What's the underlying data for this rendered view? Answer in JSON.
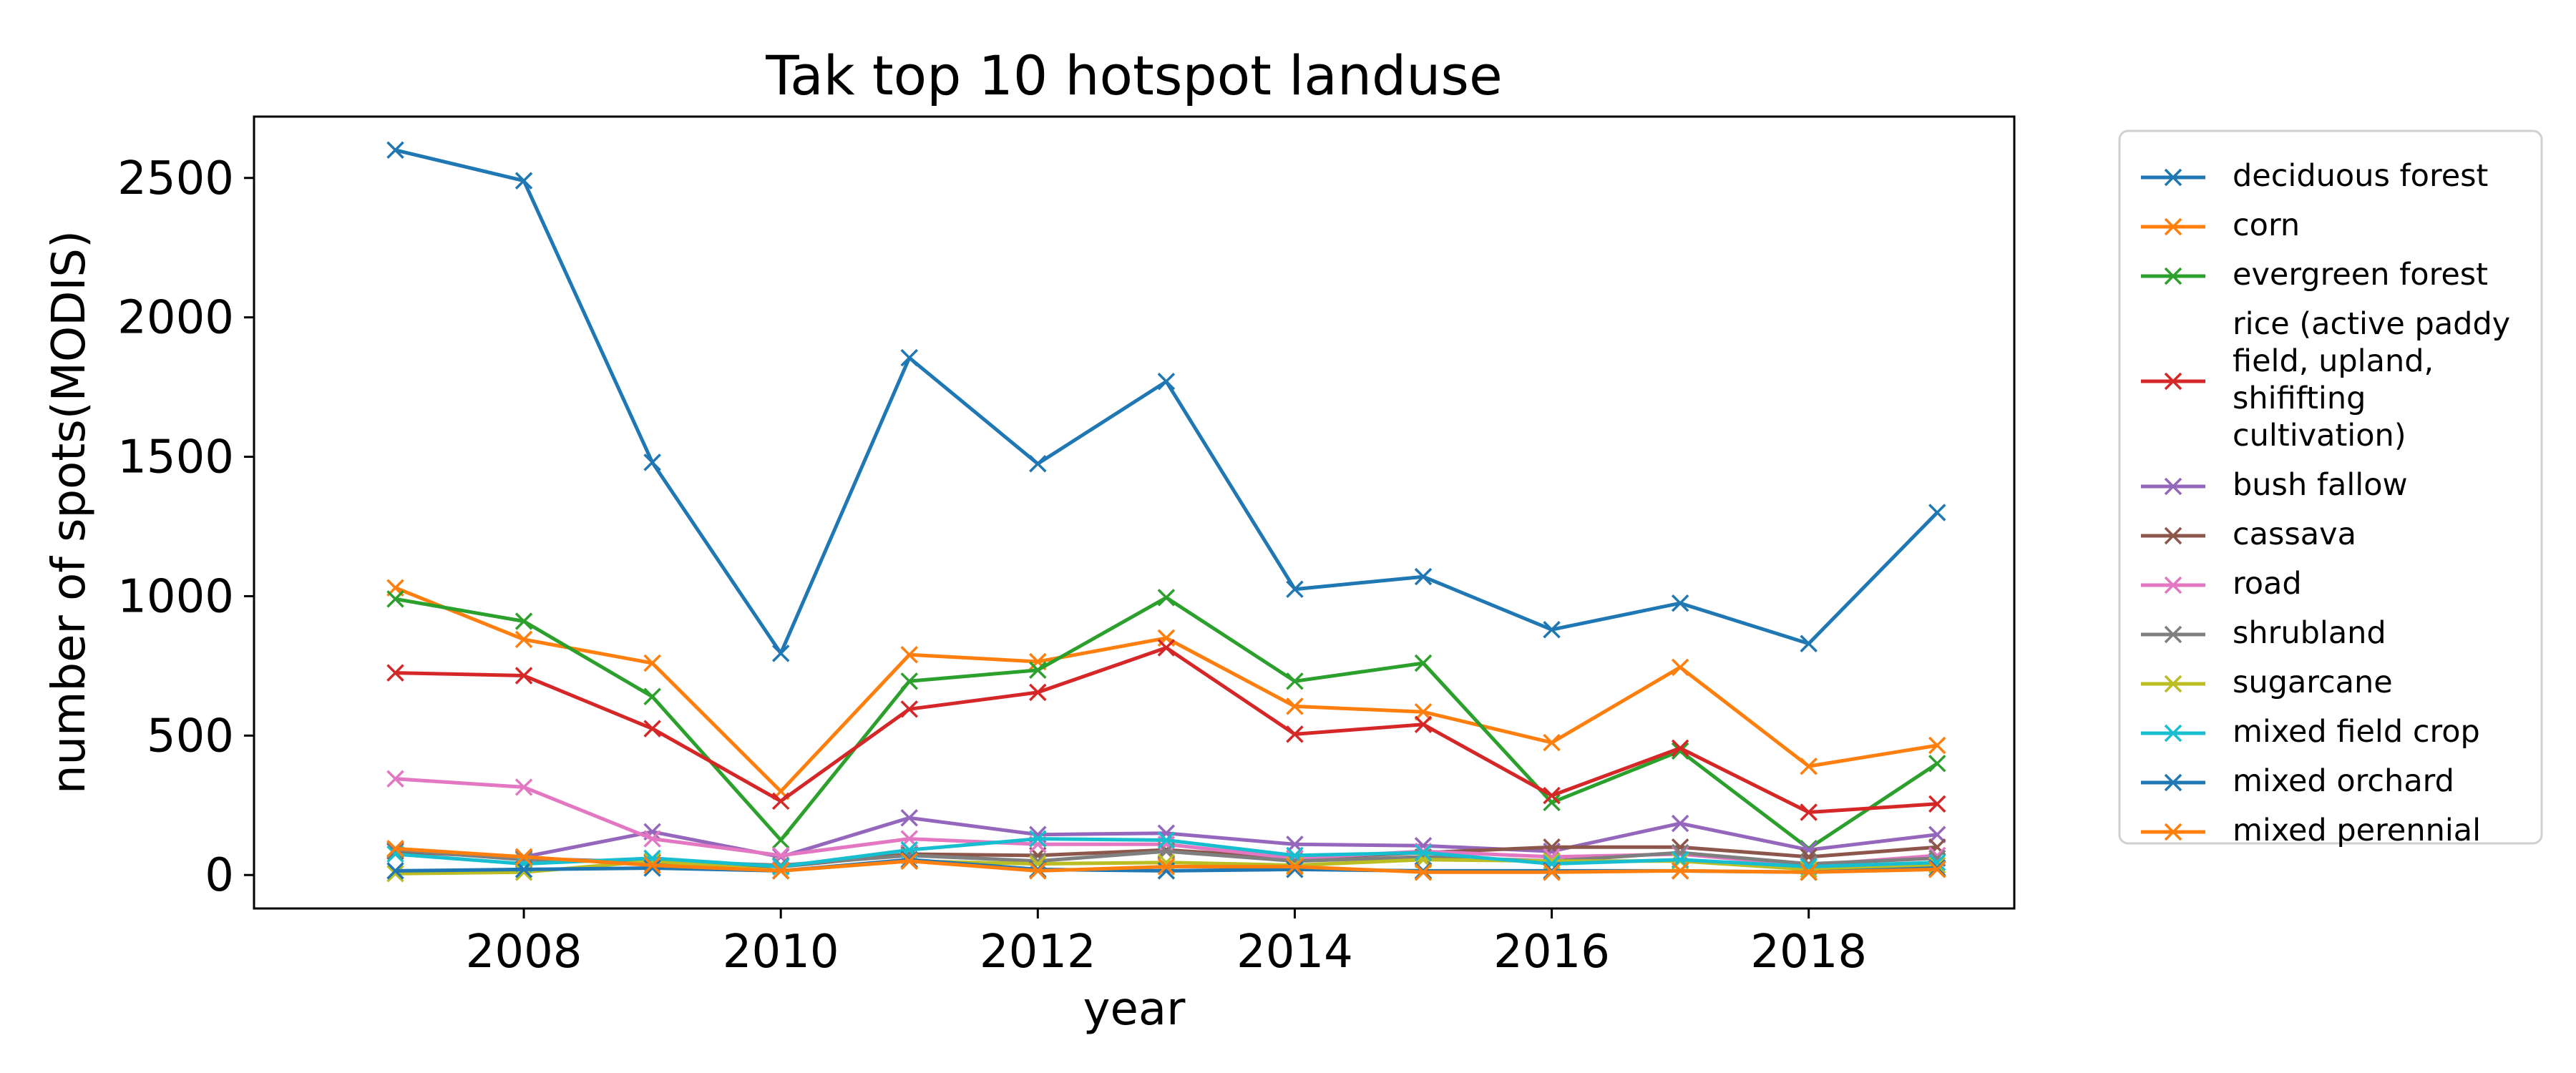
{
  "chart_data": {
    "type": "line",
    "title": "Tak top 10 hotspot landuse",
    "xlabel": "year",
    "ylabel": "number of spots(MODIS)",
    "x": [
      2007,
      2008,
      2009,
      2010,
      2011,
      2012,
      2013,
      2014,
      2015,
      2016,
      2017,
      2018,
      2019
    ],
    "xlim": [
      2005.9,
      2019.6
    ],
    "ylim": [
      -120,
      2720
    ],
    "xticks": [
      2008,
      2010,
      2012,
      2014,
      2016,
      2018
    ],
    "yticks": [
      0,
      500,
      1000,
      1500,
      2000,
      2500
    ],
    "marker": "x",
    "grid": false,
    "legend_position": "outside-right",
    "series": [
      {
        "name": "deciduous forest",
        "color": "#1f77b4",
        "values": [
          2600,
          2490,
          1480,
          795,
          1855,
          1475,
          1770,
          1025,
          1070,
          880,
          975,
          830,
          1300
        ]
      },
      {
        "name": "corn",
        "color": "#ff7f0e",
        "values": [
          1030,
          845,
          760,
          300,
          790,
          765,
          850,
          605,
          585,
          475,
          745,
          390,
          465
        ]
      },
      {
        "name": "evergreen forest",
        "color": "#2ca02c",
        "values": [
          990,
          910,
          640,
          125,
          695,
          735,
          995,
          695,
          760,
          260,
          445,
          95,
          400
        ]
      },
      {
        "name": "rice (active paddy field, upland, shififting cultivation)",
        "legend_lines": [
          "rice (active paddy",
          "field, upland,",
          "shififting",
          "cultivation)"
        ],
        "color": "#d62728",
        "values": [
          725,
          715,
          525,
          265,
          595,
          655,
          815,
          505,
          540,
          285,
          455,
          225,
          255
        ]
      },
      {
        "name": "bush fallow",
        "color": "#9467bd",
        "values": [
          90,
          65,
          155,
          65,
          205,
          145,
          150,
          110,
          105,
          85,
          185,
          90,
          145
        ]
      },
      {
        "name": "cassava",
        "color": "#8c564b",
        "values": [
          85,
          60,
          45,
          30,
          75,
          70,
          90,
          60,
          80,
          100,
          100,
          65,
          100
        ]
      },
      {
        "name": "road",
        "color": "#e377c2",
        "values": [
          345,
          315,
          130,
          70,
          130,
          110,
          110,
          60,
          85,
          65,
          75,
          35,
          70
        ]
      },
      {
        "name": "shrubland",
        "color": "#7f7f7f",
        "values": [
          90,
          55,
          50,
          35,
          70,
          50,
          85,
          50,
          65,
          50,
          80,
          40,
          60
        ]
      },
      {
        "name": "sugarcane",
        "color": "#bcbd22",
        "values": [
          5,
          10,
          50,
          15,
          50,
          40,
          45,
          35,
          55,
          50,
          50,
          20,
          35
        ]
      },
      {
        "name": "mixed field crop",
        "color": "#17becf",
        "values": [
          75,
          40,
          60,
          30,
          90,
          130,
          125,
          70,
          80,
          40,
          55,
          30,
          45
        ]
      },
      {
        "name": "mixed orchard",
        "color": "#1f77b4",
        "values": [
          15,
          20,
          25,
          15,
          55,
          20,
          15,
          20,
          15,
          15,
          15,
          10,
          25
        ]
      },
      {
        "name": "mixed perennial",
        "color": "#ff7f0e",
        "values": [
          95,
          65,
          35,
          15,
          50,
          15,
          30,
          30,
          10,
          10,
          15,
          10,
          20
        ]
      }
    ]
  }
}
